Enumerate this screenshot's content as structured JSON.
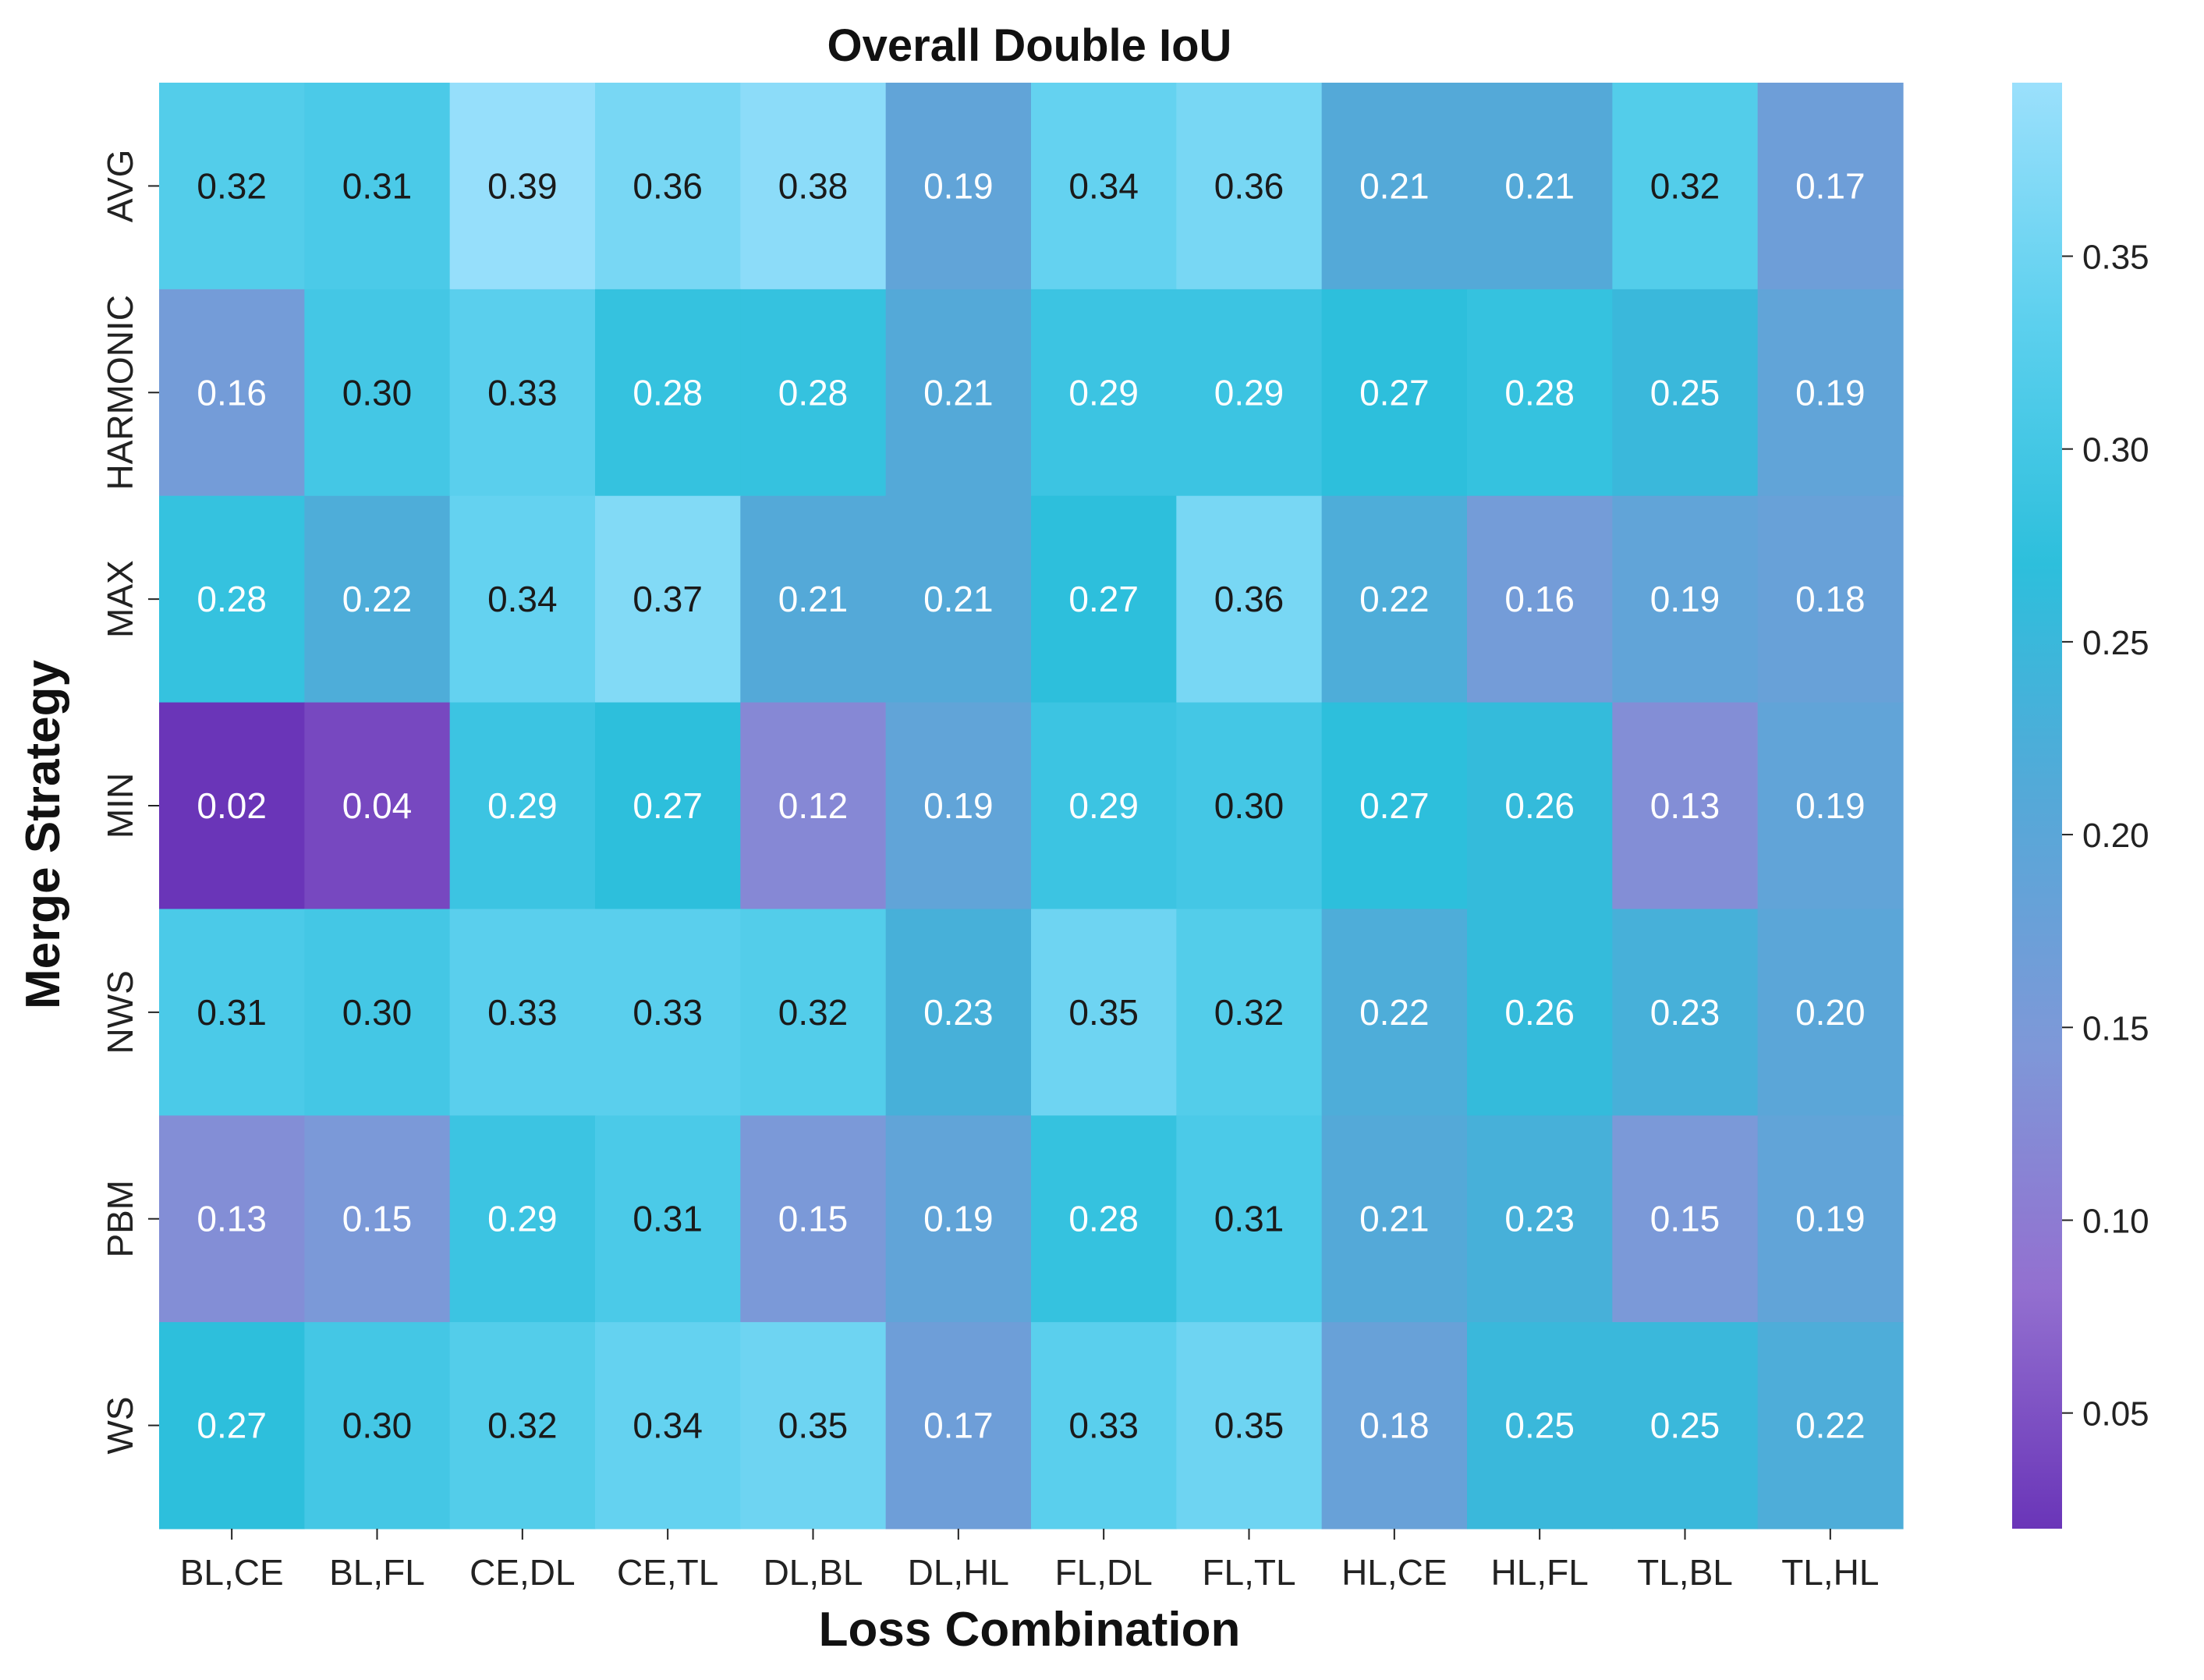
{
  "chart_data": {
    "type": "heatmap",
    "title": "Overall Double IoU",
    "xlabel": "Loss Combination",
    "ylabel": "Merge Strategy",
    "x_categories": [
      "BL,CE",
      "BL,FL",
      "CE,DL",
      "CE,TL",
      "DL,BL",
      "DL,HL",
      "FL,DL",
      "FL,TL",
      "HL,CE",
      "HL,FL",
      "TL,BL",
      "TL,HL"
    ],
    "y_categories": [
      "AVG",
      "HARMONIC",
      "MAX",
      "MIN",
      "NWS",
      "PBM",
      "WS"
    ],
    "values": [
      [
        0.32,
        0.31,
        0.39,
        0.36,
        0.38,
        0.19,
        0.34,
        0.36,
        0.21,
        0.21,
        0.32,
        0.17
      ],
      [
        0.16,
        0.3,
        0.33,
        0.28,
        0.28,
        0.21,
        0.29,
        0.29,
        0.27,
        0.28,
        0.25,
        0.19
      ],
      [
        0.28,
        0.22,
        0.34,
        0.37,
        0.21,
        0.21,
        0.27,
        0.36,
        0.22,
        0.16,
        0.19,
        0.18
      ],
      [
        0.02,
        0.04,
        0.29,
        0.27,
        0.12,
        0.19,
        0.29,
        0.3,
        0.27,
        0.26,
        0.13,
        0.19
      ],
      [
        0.31,
        0.3,
        0.33,
        0.33,
        0.32,
        0.23,
        0.35,
        0.32,
        0.22,
        0.26,
        0.23,
        0.2
      ],
      [
        0.13,
        0.15,
        0.29,
        0.31,
        0.15,
        0.19,
        0.28,
        0.31,
        0.21,
        0.23,
        0.15,
        0.19
      ],
      [
        0.27,
        0.3,
        0.32,
        0.34,
        0.35,
        0.17,
        0.33,
        0.35,
        0.18,
        0.25,
        0.25,
        0.22
      ]
    ],
    "value_labels": [
      [
        "0.32",
        "0.31",
        "0.39",
        "0.36",
        "0.38",
        "0.19",
        "0.34",
        "0.36",
        "0.21",
        "0.21",
        "0.32",
        "0.17"
      ],
      [
        "0.16",
        "0.30",
        "0.33",
        "0.28",
        "0.28",
        "0.21",
        "0.29",
        "0.29",
        "0.27",
        "0.28",
        "0.25",
        "0.19"
      ],
      [
        "0.28",
        "0.22",
        "0.34",
        "0.37",
        "0.21",
        "0.21",
        "0.27",
        "0.36",
        "0.22",
        "0.16",
        "0.19",
        "0.18"
      ],
      [
        "0.02",
        "0.04",
        "0.29",
        "0.27",
        "0.12",
        "0.19",
        "0.29",
        "0.30",
        "0.27",
        "0.26",
        "0.13",
        "0.19"
      ],
      [
        "0.31",
        "0.30",
        "0.33",
        "0.33",
        "0.32",
        "0.23",
        "0.35",
        "0.32",
        "0.22",
        "0.26",
        "0.23",
        "0.20"
      ],
      [
        "0.13",
        "0.15",
        "0.29",
        "0.31",
        "0.15",
        "0.19",
        "0.28",
        "0.31",
        "0.21",
        "0.23",
        "0.15",
        "0.19"
      ],
      [
        "0.27",
        "0.30",
        "0.32",
        "0.34",
        "0.35",
        "0.17",
        "0.33",
        "0.35",
        "0.18",
        "0.25",
        "0.25",
        "0.22"
      ]
    ],
    "colorbar": {
      "range": [
        0.02,
        0.395
      ],
      "ticks": [
        0.05,
        0.1,
        0.15,
        0.2,
        0.25,
        0.3,
        0.35
      ],
      "tick_labels": [
        "0.05",
        "0.10",
        "0.15",
        "0.20",
        "0.25",
        "0.30",
        "0.35"
      ],
      "colors": [
        "#6a35b8",
        "#9370d0",
        "#7e98d8",
        "#56a8d8",
        "#2dbfdc",
        "#5cd0ee",
        "#9be0fc"
      ]
    },
    "grid": false,
    "legend": "colorbar-right"
  }
}
